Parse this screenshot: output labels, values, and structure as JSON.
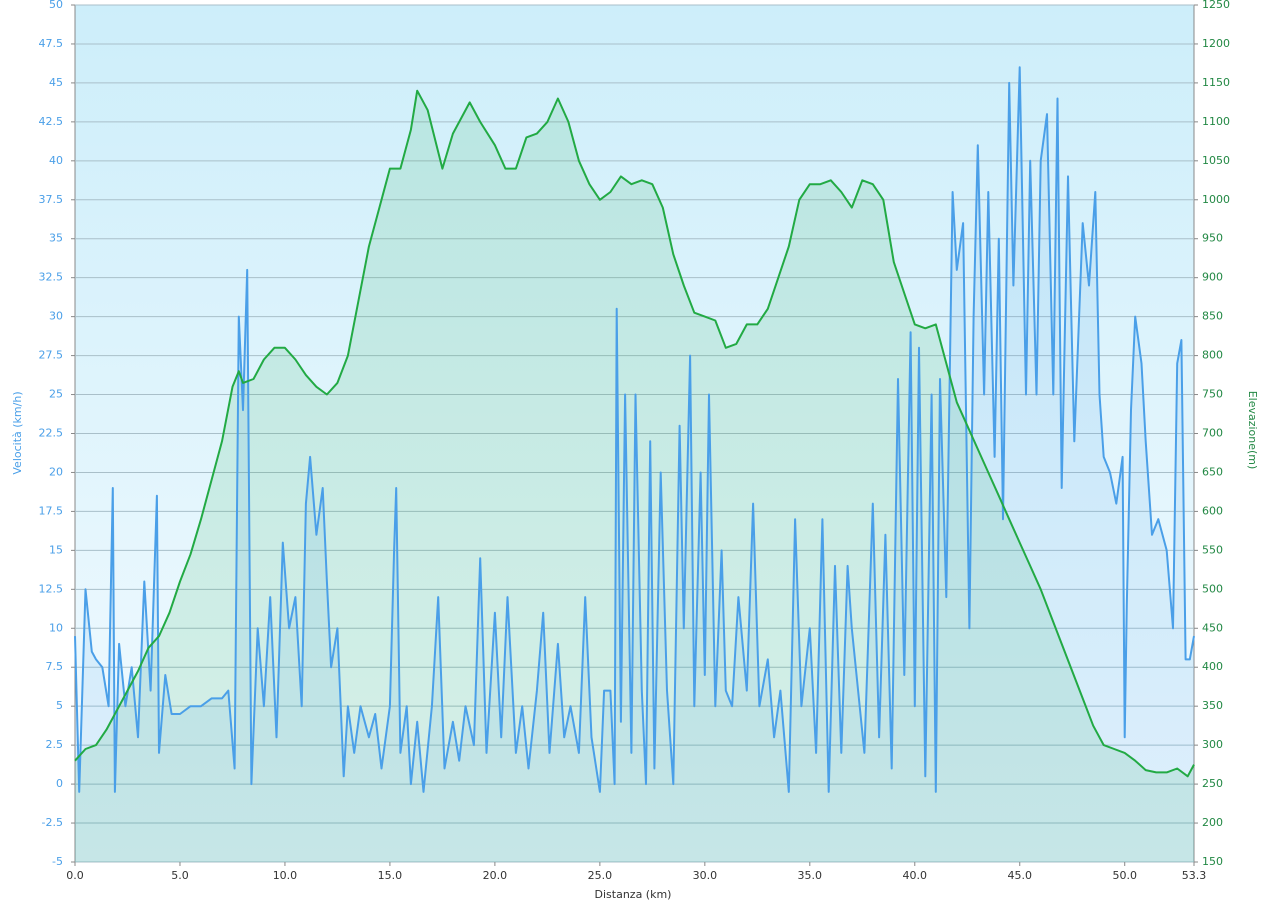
{
  "chart_data": {
    "type": "line",
    "xlabel": "Distanza  (km)",
    "ylabel": "Velocità (km/h)",
    "y2label": "Elevazione(m)",
    "xlim": [
      0,
      53.3
    ],
    "xticks": [
      {
        "value": 0,
        "label": "0.0"
      },
      {
        "value": 5,
        "label": "5.0"
      },
      {
        "value": 10,
        "label": "10.0"
      },
      {
        "value": 15,
        "label": "15.0"
      },
      {
        "value": 20,
        "label": "20.0"
      },
      {
        "value": 25,
        "label": "25.0"
      },
      {
        "value": 30,
        "label": "30.0"
      },
      {
        "value": 35,
        "label": "35.0"
      },
      {
        "value": 40,
        "label": "40.0"
      },
      {
        "value": 45,
        "label": "45.0"
      },
      {
        "value": 50,
        "label": "50.0"
      },
      53.3
    ],
    "ylim": [
      -5,
      50
    ],
    "yticks": [
      -5,
      -2.5,
      0,
      2.5,
      5,
      7.5,
      10,
      12.5,
      15,
      17.5,
      20,
      22.5,
      25,
      27.5,
      30,
      32.5,
      35,
      37.5,
      40,
      42.5,
      45,
      47.5,
      50
    ],
    "y2lim": [
      150,
      1250
    ],
    "y2ticks": [
      150,
      200,
      250,
      300,
      350,
      400,
      450,
      500,
      550,
      600,
      650,
      700,
      750,
      800,
      850,
      900,
      950,
      1000,
      1050,
      1100,
      1150,
      1200,
      1250
    ],
    "grid": true,
    "series": [
      {
        "color": "#22aa44",
        "axis": "y2",
        "x": [
          0,
          0.5,
          1,
          1.5,
          2,
          2.5,
          3,
          3.5,
          4,
          4.5,
          5,
          5.5,
          6,
          6.5,
          7,
          7.5,
          7.8,
          8,
          8.5,
          9,
          9.5,
          10,
          10.5,
          11,
          11.5,
          12,
          12.5,
          13,
          13.5,
          14,
          14.5,
          15,
          15.5,
          16,
          16.3,
          16.8,
          17.5,
          18,
          18.8,
          19.3,
          20,
          20.5,
          21,
          21.5,
          22,
          22.5,
          23,
          23.5,
          24,
          24.5,
          25,
          25.5,
          26,
          26.5,
          27,
          27.5,
          28,
          28.5,
          29,
          29.5,
          30,
          30.5,
          31,
          31.5,
          32,
          32.5,
          33,
          33.5,
          34,
          34.5,
          35,
          35.5,
          36,
          36.5,
          37,
          37.5,
          38,
          38.5,
          39,
          39.5,
          40,
          40.5,
          41,
          41.5,
          42,
          42.5,
          43,
          43.5,
          44,
          44.5,
          45,
          45.5,
          46,
          46.5,
          47,
          47.5,
          48,
          48.5,
          49,
          49.5,
          50,
          50.5,
          51,
          51.5,
          52,
          52.5,
          53,
          53.3
        ],
        "values": [
          280,
          295,
          300,
          320,
          345,
          370,
          395,
          425,
          440,
          470,
          510,
          545,
          590,
          640,
          690,
          760,
          780,
          765,
          770,
          795,
          810,
          810,
          795,
          775,
          760,
          750,
          765,
          800,
          870,
          940,
          990,
          1040,
          1040,
          1090,
          1140,
          1115,
          1040,
          1085,
          1125,
          1100,
          1070,
          1040,
          1040,
          1080,
          1085,
          1100,
          1130,
          1100,
          1050,
          1020,
          1000,
          1010,
          1030,
          1020,
          1025,
          1020,
          990,
          930,
          890,
          855,
          850,
          845,
          810,
          815,
          840,
          840,
          860,
          900,
          940,
          1000,
          1020,
          1020,
          1025,
          1010,
          990,
          1025,
          1020,
          1000,
          920,
          880,
          840,
          835,
          840,
          790,
          740,
          710,
          680,
          650,
          620,
          590,
          560,
          530,
          500,
          465,
          430,
          395,
          360,
          325,
          300,
          295,
          290,
          280,
          268,
          265,
          265,
          270,
          260,
          275
        ]
      },
      {
        "color": "#4a9fe8",
        "axis": "y",
        "x": [
          0,
          0.2,
          0.5,
          0.8,
          1,
          1.3,
          1.6,
          1.8,
          1.9,
          2.1,
          2.4,
          2.7,
          3,
          3.3,
          3.6,
          3.9,
          4,
          4.3,
          4.6,
          5,
          5.5,
          6,
          6.5,
          7,
          7.3,
          7.6,
          7.8,
          8,
          8.2,
          8.4,
          8.7,
          9,
          9.3,
          9.6,
          9.9,
          10.2,
          10.5,
          10.8,
          11,
          11.2,
          11.5,
          11.8,
          12,
          12.2,
          12.5,
          12.8,
          13,
          13.3,
          13.6,
          14,
          14.3,
          14.6,
          15,
          15.2,
          15.3,
          15.5,
          15.8,
          16,
          16.3,
          16.6,
          17,
          17.3,
          17.6,
          18,
          18.3,
          18.6,
          19,
          19.3,
          19.6,
          20,
          20.3,
          20.6,
          21,
          21.3,
          21.6,
          22,
          22.3,
          22.6,
          23,
          23.3,
          23.6,
          24,
          24.3,
          24.6,
          25,
          25.2,
          25.5,
          25.7,
          25.8,
          26,
          26.2,
          26.5,
          26.7,
          27,
          27.2,
          27.4,
          27.6,
          27.9,
          28.2,
          28.5,
          28.8,
          29,
          29.3,
          29.5,
          29.8,
          30,
          30.2,
          30.5,
          30.8,
          31,
          31.3,
          31.6,
          32,
          32.3,
          32.6,
          33,
          33.3,
          33.6,
          34,
          34.3,
          34.6,
          35,
          35.3,
          35.6,
          35.9,
          36.2,
          36.5,
          36.8,
          37,
          37.3,
          37.6,
          38,
          38.3,
          38.6,
          38.9,
          39.2,
          39.5,
          39.8,
          40,
          40.2,
          40.5,
          40.8,
          41,
          41.2,
          41.5,
          41.8,
          42,
          42.3,
          42.6,
          42.8,
          43,
          43.3,
          43.5,
          43.8,
          44,
          44.2,
          44.5,
          44.7,
          45,
          45.3,
          45.5,
          45.8,
          46,
          46.3,
          46.6,
          46.8,
          47,
          47.3,
          47.6,
          48,
          48.3,
          48.6,
          48.8,
          49,
          49.3,
          49.6,
          49.9,
          50,
          50.1,
          50.3,
          50.5,
          50.8,
          51,
          51.3,
          51.6,
          52,
          52.3,
          52.5,
          52.7,
          52.9,
          53.1,
          53.3
        ],
        "values": [
          9.5,
          -0.5,
          12.5,
          8.5,
          8,
          7.5,
          5,
          19,
          -0.5,
          9,
          5,
          7.5,
          3,
          13,
          6,
          18.5,
          2,
          7,
          4.5,
          4.5,
          5,
          5,
          5.5,
          5.5,
          6,
          1,
          30,
          24,
          33,
          0,
          10,
          5,
          12,
          3,
          15.5,
          10,
          12,
          5,
          18,
          21,
          16,
          19,
          13,
          7.5,
          10,
          0.5,
          5,
          2,
          5,
          3,
          4.5,
          1,
          5,
          15,
          19,
          2,
          5,
          0,
          4,
          -0.5,
          5,
          12,
          1,
          4,
          1.5,
          5,
          2.5,
          14.5,
          2,
          11,
          3,
          12,
          2,
          5,
          1,
          6,
          11,
          2,
          9,
          3,
          5,
          2,
          12,
          3,
          -0.5,
          6,
          6,
          0,
          30.5,
          4,
          25,
          2,
          25,
          6,
          0,
          22,
          1,
          20,
          6,
          0,
          23,
          10,
          27.5,
          5,
          20,
          7,
          25,
          5,
          15,
          6,
          5,
          12,
          6,
          18,
          5,
          8,
          3,
          6,
          -0.5,
          17,
          5,
          10,
          2,
          17,
          -0.5,
          14,
          2,
          14,
          10,
          6,
          2,
          18,
          3,
          16,
          1,
          26,
          7,
          29,
          5,
          28,
          0.5,
          25,
          -0.5,
          26,
          12,
          38,
          33,
          36,
          10,
          30,
          41,
          25,
          38,
          21,
          35,
          17,
          45,
          32,
          46,
          25,
          40,
          25,
          40,
          43,
          25,
          44,
          19,
          39,
          22,
          36,
          32,
          38,
          25,
          21,
          20,
          18,
          21,
          3,
          11.5,
          24,
          30,
          27,
          22,
          16,
          17,
          15,
          10,
          27,
          28.5,
          8,
          8,
          9.5
        ]
      }
    ]
  }
}
